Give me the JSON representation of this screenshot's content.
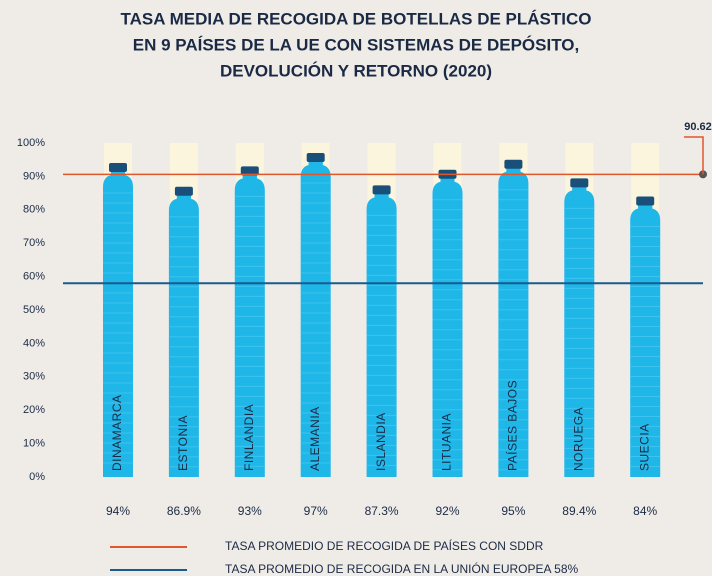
{
  "chart_data": {
    "type": "bar",
    "title": [
      "TASA MEDIA DE RECOGIDA DE BOTELLAS DE PLÁSTICO",
      "EN 9 PAÍSES DE LA UE CON SISTEMAS DE DEPÓSITO,",
      "DEVOLUCIÓN Y RETORNO (2020)"
    ],
    "categories": [
      "DINAMARCA",
      "ESTONIA",
      "FINLANDIA",
      "ALEMANIA",
      "ISLANDIA",
      "LITUANIA",
      "PAÍSES BAJOS",
      "NORUEGA",
      "SUECIA"
    ],
    "values": [
      94,
      86.9,
      93,
      97,
      87.3,
      92,
      95,
      89.4,
      84
    ],
    "value_labels": [
      "94%",
      "86.9%",
      "93%",
      "97%",
      "87.3%",
      "92%",
      "95%",
      "89.4%",
      "84%"
    ],
    "color": "#1fb6e8",
    "ylim": [
      0,
      100
    ],
    "yticks": [
      {
        "value": 0,
        "label": "0%"
      },
      {
        "value": 10,
        "label": "10%"
      },
      {
        "value": 20,
        "label": "20%"
      },
      {
        "value": 30,
        "label": "30%"
      },
      {
        "value": 40,
        "label": "40%"
      },
      {
        "value": 50,
        "label": "50%"
      },
      {
        "value": 60,
        "label": "60%"
      },
      {
        "value": 70,
        "label": "70%"
      },
      {
        "value": 80,
        "label": "80%"
      },
      {
        "value": 90,
        "label": "90%"
      },
      {
        "value": 100,
        "label": "100%"
      }
    ],
    "grid": false,
    "reference_lines": [
      {
        "name": "TASA PROMEDIO DE RECOGIDA DE PAÍSES CON SDDR",
        "value": 90.62,
        "color": "#e0572c"
      },
      {
        "name": "TASA PROMEDIO DE RECOGIDA EN LA UNIÓN EUROPEA 58%",
        "value": 58,
        "color": "#1a5a8c"
      }
    ]
  }
}
